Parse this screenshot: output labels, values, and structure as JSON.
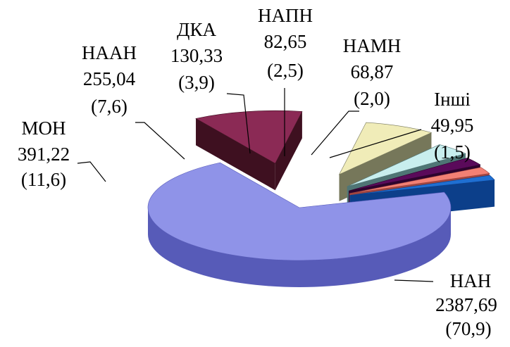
{
  "chart_data": {
    "type": "pie",
    "style": "exploded-3d-pie",
    "legend": "none",
    "slices": [
      {
        "label": "НАН",
        "value": 2387.69,
        "value_text": "2387,69",
        "percent_text": "(70,9)",
        "color": "#8f93e8",
        "side_color": "#575bb8"
      },
      {
        "label": "МОН",
        "value": 391.22,
        "value_text": "391,22",
        "percent_text": "(11,6)",
        "color": "#8b2a55",
        "side_color": "#3e1020"
      },
      {
        "label": "НААН",
        "value": 255.04,
        "value_text": "255,04",
        "percent_text": "(7,6)",
        "color": "#f0ecb8",
        "side_color": "#76775a"
      },
      {
        "label": "ДКА",
        "value": 130.33,
        "value_text": "130,33",
        "percent_text": "(3,9)",
        "color": "#c8eeee",
        "side_color": "#4f7575"
      },
      {
        "label": "НАПН",
        "value": 82.65,
        "value_text": "82,65",
        "percent_text": "(2,5)",
        "color": "#5a0a5a",
        "side_color": "#2e042e"
      },
      {
        "label": "НАМН",
        "value": 68.87,
        "value_text": "68,87",
        "percent_text": "(2,0)",
        "color": "#f28074",
        "side_color": "#a04540"
      },
      {
        "label": "Інші",
        "value": 49.95,
        "value_text": "49,95",
        "percent_text": "(1,5)",
        "color": "#1f6fd2",
        "side_color": "#0c3f8a"
      }
    ]
  }
}
